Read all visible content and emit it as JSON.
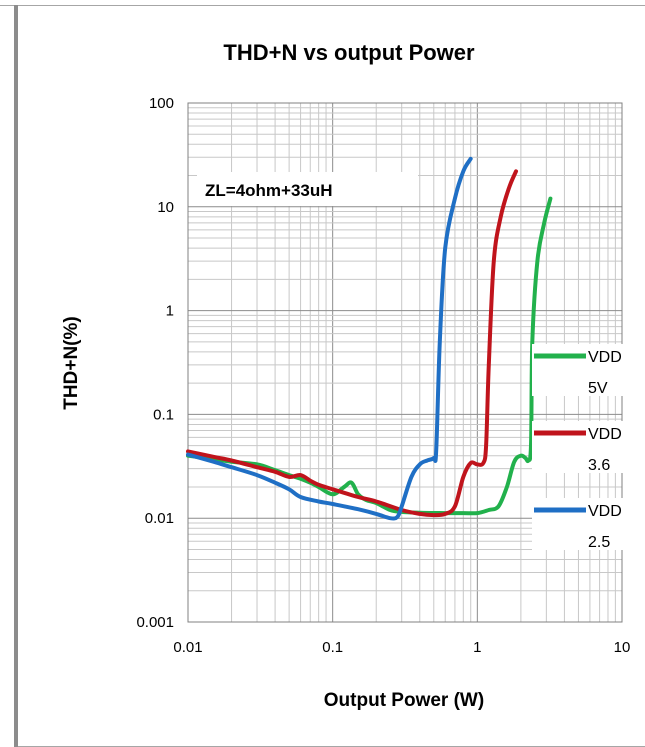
{
  "chart_data": {
    "type": "line",
    "title": "THD+N vs output Power",
    "xlabel": "Output Power (W)",
    "ylabel": "THD+N(%)",
    "x_scale": "log",
    "y_scale": "log",
    "xlim": [
      0.01,
      10
    ],
    "ylim": [
      0.001,
      100
    ],
    "x_ticks": [
      "0.01",
      "0.1",
      "1",
      "10"
    ],
    "y_ticks": [
      "0.001",
      "0.01",
      "0.1",
      "1",
      "10",
      "100"
    ],
    "grid": true,
    "annotation": "ZL=4ohm+33uH",
    "legend_position": "right",
    "series": [
      {
        "name": "VDD 5V",
        "legend_lines": [
          "VDD",
          "5V"
        ],
        "color": "#22b14c",
        "points": [
          [
            0.01,
            0.04
          ],
          [
            0.015,
            0.037
          ],
          [
            0.02,
            0.035
          ],
          [
            0.03,
            0.033
          ],
          [
            0.04,
            0.029
          ],
          [
            0.05,
            0.026
          ],
          [
            0.06,
            0.024
          ],
          [
            0.07,
            0.022
          ],
          [
            0.08,
            0.02
          ],
          [
            0.1,
            0.017
          ],
          [
            0.12,
            0.02
          ],
          [
            0.135,
            0.022
          ],
          [
            0.15,
            0.017
          ],
          [
            0.17,
            0.015
          ],
          [
            0.2,
            0.014
          ],
          [
            0.25,
            0.012
          ],
          [
            0.3,
            0.0115
          ],
          [
            0.4,
            0.0113
          ],
          [
            0.6,
            0.0112
          ],
          [
            0.8,
            0.0112
          ],
          [
            1.0,
            0.0112
          ],
          [
            1.2,
            0.012
          ],
          [
            1.4,
            0.013
          ],
          [
            1.6,
            0.02
          ],
          [
            1.8,
            0.035
          ],
          [
            2.0,
            0.04
          ],
          [
            2.15,
            0.038
          ],
          [
            2.25,
            0.036
          ],
          [
            2.35,
            0.05
          ],
          [
            2.4,
            0.5
          ],
          [
            2.6,
            3.0
          ],
          [
            2.9,
            7.0
          ],
          [
            3.2,
            12.0
          ]
        ]
      },
      {
        "name": "VDD 3.6",
        "legend_lines": [
          "VDD",
          "3.6"
        ],
        "color": "#c0141c",
        "points": [
          [
            0.01,
            0.044
          ],
          [
            0.015,
            0.039
          ],
          [
            0.02,
            0.036
          ],
          [
            0.03,
            0.031
          ],
          [
            0.04,
            0.028
          ],
          [
            0.05,
            0.025
          ],
          [
            0.06,
            0.026
          ],
          [
            0.07,
            0.023
          ],
          [
            0.08,
            0.021
          ],
          [
            0.1,
            0.019
          ],
          [
            0.15,
            0.016
          ],
          [
            0.2,
            0.0145
          ],
          [
            0.3,
            0.012
          ],
          [
            0.4,
            0.011
          ],
          [
            0.5,
            0.0107
          ],
          [
            0.6,
            0.011
          ],
          [
            0.7,
            0.013
          ],
          [
            0.8,
            0.025
          ],
          [
            0.9,
            0.034
          ],
          [
            1.0,
            0.033
          ],
          [
            1.1,
            0.034
          ],
          [
            1.15,
            0.05
          ],
          [
            1.2,
            0.3
          ],
          [
            1.3,
            3.0
          ],
          [
            1.45,
            8.0
          ],
          [
            1.65,
            15.0
          ],
          [
            1.85,
            22.0
          ]
        ]
      },
      {
        "name": "VDD 2.5",
        "legend_lines": [
          "VDD",
          "2.5"
        ],
        "color": "#1f6fc5",
        "points": [
          [
            0.01,
            0.041
          ],
          [
            0.015,
            0.035
          ],
          [
            0.02,
            0.031
          ],
          [
            0.03,
            0.026
          ],
          [
            0.04,
            0.022
          ],
          [
            0.05,
            0.019
          ],
          [
            0.06,
            0.016
          ],
          [
            0.08,
            0.0145
          ],
          [
            0.1,
            0.0137
          ],
          [
            0.15,
            0.0122
          ],
          [
            0.2,
            0.011
          ],
          [
            0.25,
            0.01
          ],
          [
            0.28,
            0.0103
          ],
          [
            0.3,
            0.013
          ],
          [
            0.35,
            0.025
          ],
          [
            0.4,
            0.033
          ],
          [
            0.45,
            0.036
          ],
          [
            0.5,
            0.038
          ],
          [
            0.52,
            0.045
          ],
          [
            0.55,
            0.5
          ],
          [
            0.6,
            4.0
          ],
          [
            0.7,
            12.0
          ],
          [
            0.8,
            22.0
          ],
          [
            0.9,
            29.0
          ]
        ]
      }
    ]
  }
}
